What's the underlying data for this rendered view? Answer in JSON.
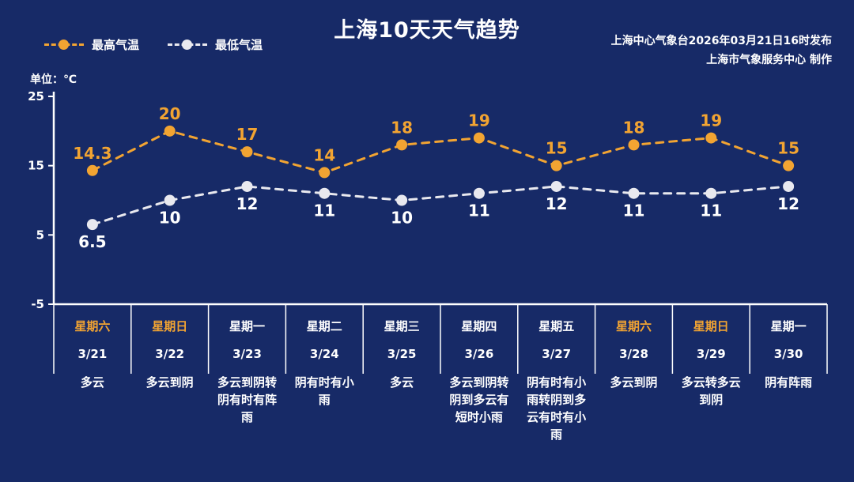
{
  "header": {
    "title": "上海10天天气趋势",
    "issued_line1": "上海中心气象台2026年03月21日16时发布",
    "issued_line2": "上海市气象服务中心  制作",
    "unit_label": "单位：℃",
    "legend": [
      {
        "label": "最高气温",
        "color": "#f2a432"
      },
      {
        "label": "最低气温",
        "color": "#e9e9ef"
      }
    ]
  },
  "colors": {
    "background": "#172a67",
    "axis": "#ffffff",
    "high": "#f2a432",
    "low": "#e9e9ef",
    "weekend_text": "#f2a432",
    "text": "#ffffff"
  },
  "chart_data": {
    "type": "line",
    "title": "上海10天天气趋势",
    "xlabel": "",
    "ylabel": "单位：℃",
    "ylim": [
      -5,
      25
    ],
    "yticks": [
      25,
      15,
      5,
      -5
    ],
    "grid": false,
    "legend_position": "top-left",
    "line_style": "dashed",
    "categories": [
      "3/21",
      "3/22",
      "3/23",
      "3/24",
      "3/25",
      "3/26",
      "3/27",
      "3/28",
      "3/29",
      "3/30"
    ],
    "weekdays": [
      "星期六",
      "星期日",
      "星期一",
      "星期二",
      "星期三",
      "星期四",
      "星期五",
      "星期六",
      "星期日",
      "星期一"
    ],
    "weather": [
      "多云",
      "多云到阴",
      "多云到阴转阴有时有阵雨",
      "阴有时有小雨",
      "多云",
      "多云到阴转阴到多云有短时小雨",
      "阴有时有小雨转阴到多云有时有小雨",
      "多云到阴",
      "多云转多云到阴",
      "阴有阵雨"
    ],
    "series": [
      {
        "name": "最高气温",
        "color": "#f2a432",
        "values": [
          14.3,
          20,
          17,
          14,
          18,
          19,
          15,
          18,
          19,
          15
        ]
      },
      {
        "name": "最低气温",
        "color": "#e9e9ef",
        "values": [
          6.5,
          10,
          12,
          11,
          10,
          11,
          12,
          11,
          11,
          12
        ]
      }
    ]
  }
}
